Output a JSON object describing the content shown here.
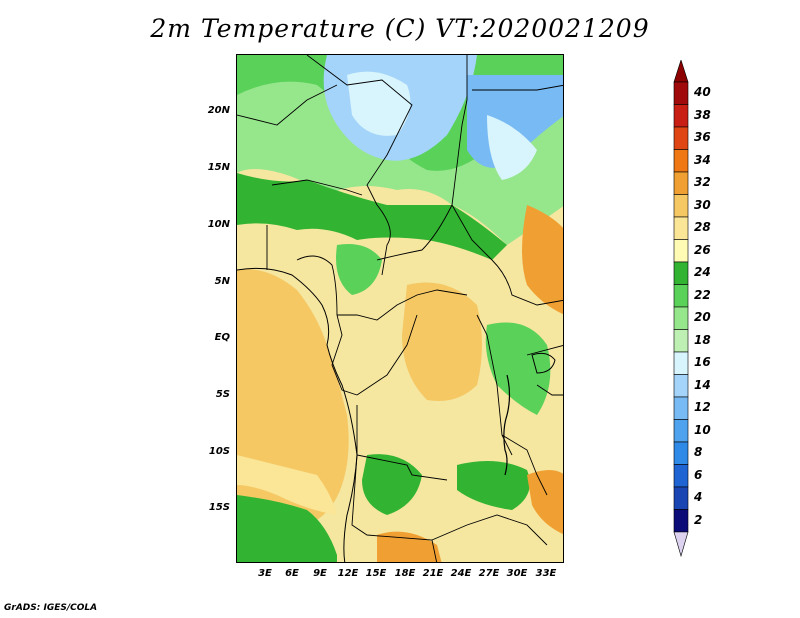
{
  "title": "2m Temperature (C) VT:2020021209",
  "footer": "GrADS: IGES/COLA",
  "map": {
    "lat_labels": [
      "20N",
      "15N",
      "10N",
      "5N",
      "EQ",
      "5S",
      "10S",
      "15S"
    ],
    "lon_labels": [
      "3E",
      "6E",
      "9E",
      "12E",
      "15E",
      "18E",
      "21E",
      "24E",
      "27E",
      "30E",
      "33E"
    ]
  },
  "colorbar": {
    "labels": [
      "2",
      "4",
      "6",
      "8",
      "10",
      "12",
      "14",
      "16",
      "18",
      "20",
      "22",
      "24",
      "26",
      "28",
      "30",
      "32",
      "34",
      "36",
      "38",
      "40"
    ],
    "colors": [
      "#0c0c78",
      "#1a46b4",
      "#1e64d2",
      "#2e8ae6",
      "#4ea2ee",
      "#78baf4",
      "#a4d4fa",
      "#d8f4fc",
      "#bef0b4",
      "#96e68c",
      "#5ad25a",
      "#32b432",
      "#fffab4",
      "#fae696",
      "#f5c864",
      "#f0a032",
      "#f07814",
      "#e04614",
      "#c81e14",
      "#a00a0a"
    ],
    "under_color": "#dcd2f0",
    "over_color": "#8c0000"
  }
}
